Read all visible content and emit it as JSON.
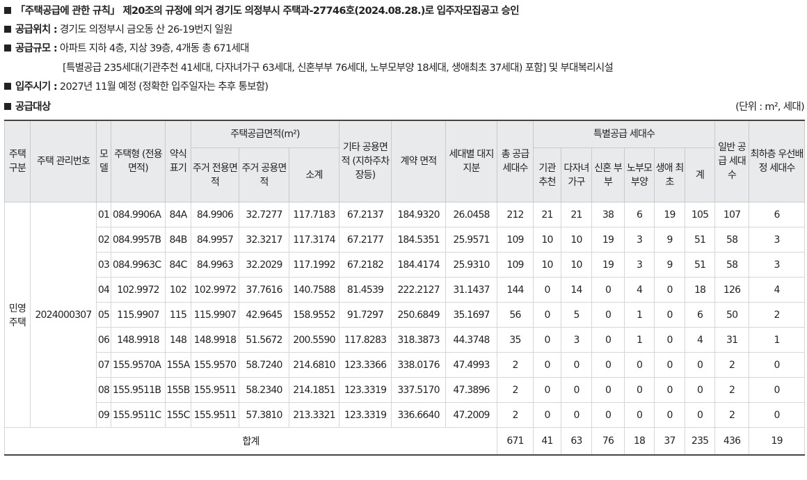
{
  "notices": [
    {
      "label": "",
      "text": "「주택공급에 관한 규칙」 제20조의 규정에 의거 경기도 의정부시 주택과-27746호(2024.08.28.)로 입주자모집공고 승인"
    },
    {
      "label": "공급위치 :",
      "text": " 경기도 의정부시 금오동 산 26-19번지 일원"
    },
    {
      "label": "공급규모 :",
      "text": " 아파트 지하 4층, 지상 39층, 4개동 총 671세대"
    },
    {
      "label": "",
      "text": "[특별공급 235세대(기관추천 41세대, 다자녀가구 63세대, 신혼부부 76세대, 노부모부양 18세대, 생애최초 37세대) 포함] 및 부대복리시설"
    },
    {
      "label": "입주시기 :",
      "text": " 2027년 11월 예정 (정확한 입주일자는 추후 통보함)"
    },
    {
      "label": "공급대상",
      "text": ""
    }
  ],
  "unit_note": "(단위 : m², 세대)",
  "headers": {
    "type": "주택 구분",
    "mgmt": "주택 관리번호",
    "model": "모 델",
    "housing_type": "주택형 (전용 면적)",
    "short": "약식 표기",
    "area_group": "주택공급면적(m²)",
    "area_private": "주거 전용면적",
    "area_common": "주거 공용면적",
    "area_sub": "소계",
    "other_area": "기타 공용면적 (지하주차 장등)",
    "contract": "계약 면적",
    "land": "세대별 대지지분",
    "total_units": "총 공급 세대수",
    "special_group": "특별공급 세대수",
    "sp_inst": "기관 추천",
    "sp_multi": "다자녀 가구",
    "sp_newlywed": "신혼 부부",
    "sp_parents": "노부모 부양",
    "sp_first": "생애 최초",
    "sp_total": "계",
    "general": "일반 공급 세대수",
    "lowest": "최하층 우선배정 세대수"
  },
  "group": {
    "type": "민영 주택",
    "mgmt": "2024000307"
  },
  "rows": [
    {
      "model": "01",
      "ht": "084.9906A",
      "short": "84A",
      "priv": "84.9906",
      "comm": "32.7277",
      "sub": "117.7183",
      "other": "67.2137",
      "contract": "184.9320",
      "land": "26.0458",
      "total": "212",
      "inst": "21",
      "multi": "21",
      "newly": "38",
      "parents": "6",
      "first": "19",
      "sp": "105",
      "general": "107",
      "lowest": "6"
    },
    {
      "model": "02",
      "ht": "084.9957B",
      "short": "84B",
      "priv": "84.9957",
      "comm": "32.3217",
      "sub": "117.3174",
      "other": "67.2177",
      "contract": "184.5351",
      "land": "25.9571",
      "total": "109",
      "inst": "10",
      "multi": "10",
      "newly": "19",
      "parents": "3",
      "first": "9",
      "sp": "51",
      "general": "58",
      "lowest": "3"
    },
    {
      "model": "03",
      "ht": "084.9963C",
      "short": "84C",
      "priv": "84.9963",
      "comm": "32.2029",
      "sub": "117.1992",
      "other": "67.2182",
      "contract": "184.4174",
      "land": "25.9310",
      "total": "109",
      "inst": "10",
      "multi": "10",
      "newly": "19",
      "parents": "3",
      "first": "9",
      "sp": "51",
      "general": "58",
      "lowest": "3"
    },
    {
      "model": "04",
      "ht": "102.9972",
      "short": "102",
      "priv": "102.9972",
      "comm": "37.7616",
      "sub": "140.7588",
      "other": "81.4539",
      "contract": "222.2127",
      "land": "31.1437",
      "total": "144",
      "inst": "0",
      "multi": "14",
      "newly": "0",
      "parents": "4",
      "first": "0",
      "sp": "18",
      "general": "126",
      "lowest": "4"
    },
    {
      "model": "05",
      "ht": "115.9907",
      "short": "115",
      "priv": "115.9907",
      "comm": "42.9645",
      "sub": "158.9552",
      "other": "91.7297",
      "contract": "250.6849",
      "land": "35.1697",
      "total": "56",
      "inst": "0",
      "multi": "5",
      "newly": "0",
      "parents": "1",
      "first": "0",
      "sp": "6",
      "general": "50",
      "lowest": "2"
    },
    {
      "model": "06",
      "ht": "148.9918",
      "short": "148",
      "priv": "148.9918",
      "comm": "51.5672",
      "sub": "200.5590",
      "other": "117.8283",
      "contract": "318.3873",
      "land": "44.3748",
      "total": "35",
      "inst": "0",
      "multi": "3",
      "newly": "0",
      "parents": "1",
      "first": "0",
      "sp": "4",
      "general": "31",
      "lowest": "1"
    },
    {
      "model": "07",
      "ht": "155.9570A",
      "short": "155A",
      "priv": "155.9570",
      "comm": "58.7240",
      "sub": "214.6810",
      "other": "123.3366",
      "contract": "338.0176",
      "land": "47.4993",
      "total": "2",
      "inst": "0",
      "multi": "0",
      "newly": "0",
      "parents": "0",
      "first": "0",
      "sp": "0",
      "general": "2",
      "lowest": "0"
    },
    {
      "model": "08",
      "ht": "155.9511B",
      "short": "155B",
      "priv": "155.9511",
      "comm": "58.2340",
      "sub": "214.1851",
      "other": "123.3319",
      "contract": "337.5170",
      "land": "47.3896",
      "total": "2",
      "inst": "0",
      "multi": "0",
      "newly": "0",
      "parents": "0",
      "first": "0",
      "sp": "0",
      "general": "2",
      "lowest": "0"
    },
    {
      "model": "09",
      "ht": "155.9511C",
      "short": "155C",
      "priv": "155.9511",
      "comm": "57.3810",
      "sub": "213.3321",
      "other": "123.3319",
      "contract": "336.6640",
      "land": "47.2009",
      "total": "2",
      "inst": "0",
      "multi": "0",
      "newly": "0",
      "parents": "0",
      "first": "0",
      "sp": "0",
      "general": "2",
      "lowest": "0"
    }
  ],
  "totals": {
    "label": "합계",
    "total": "671",
    "inst": "41",
    "multi": "63",
    "newly": "76",
    "parents": "18",
    "first": "37",
    "sp": "235",
    "general": "436",
    "lowest": "19"
  }
}
